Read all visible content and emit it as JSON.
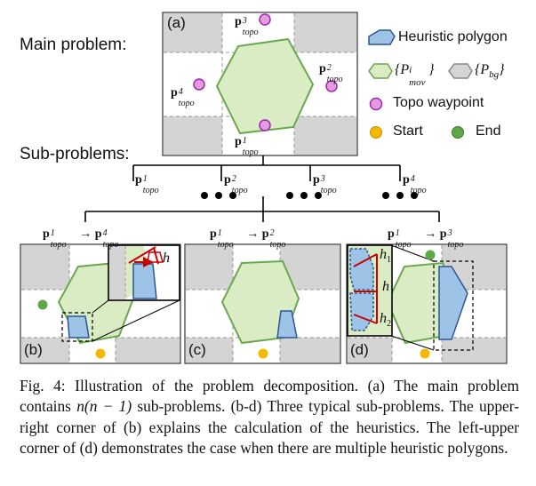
{
  "main_label": "Main problem:",
  "sub_label": "Sub-problems:",
  "panel_tags": {
    "a": "(a)",
    "b": "(b)",
    "c": "(c)",
    "d": "(d)"
  },
  "legend": {
    "heuristic": "Heuristic polygon",
    "mov": "{P",
    "mov_sup": "i",
    "mov_sub": "mov",
    "mov_close": "}",
    "bg": "{P",
    "bg_sub": "bg",
    "bg_close": "}",
    "topo": "Topo waypoint",
    "start": "Start",
    "end": "End"
  },
  "waypoints": {
    "base": "p",
    "sub": "topo",
    "w1": "1",
    "w2": "2",
    "w3": "3",
    "w4": "4"
  },
  "tree_top": [
    "1",
    "2",
    "3",
    "4"
  ],
  "pairs": [
    {
      "from": "1",
      "to": "4"
    },
    {
      "from": "1",
      "to": "2"
    },
    {
      "from": "1",
      "to": "3"
    }
  ],
  "arrow": "→",
  "h_labels": {
    "h": "h",
    "h1": "h",
    "h1_sub": "1",
    "h2": "h",
    "h2_sub": "2"
  },
  "caption": {
    "p1": "Fig. 4: Illustration of the problem decomposition. (a) The main problem contains ",
    "math": "n(n − 1)",
    "p2": " sub-problems. (b-d) Three typical sub-problems. The upper-right corner of (b) explains the calculation of the heuristics. The left-upper corner of (d) demonstrates the case when there are multiple heuristic polygons."
  },
  "colors": {
    "mov_fill": "#d9ecc4",
    "mov_stroke": "#6aa84f",
    "bg_fill": "#d4d4d4",
    "heur_fill": "#9dc3e6",
    "heur_stroke": "#2f5597",
    "topo_fill": "#e59be0",
    "topo_stroke": "#9c27b0",
    "start": "#f5b800",
    "end": "#5fa84a",
    "arrow_red": "#cc0000"
  }
}
